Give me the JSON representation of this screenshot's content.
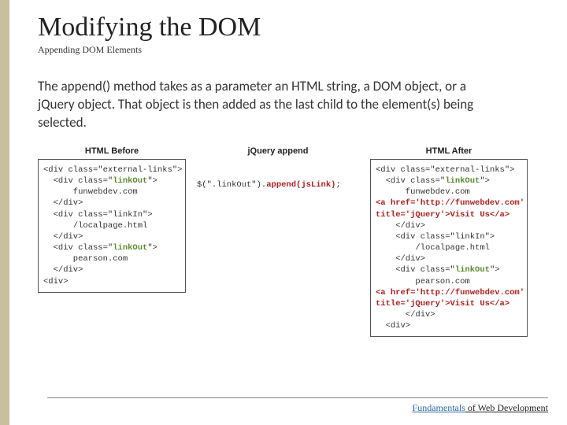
{
  "title": "Modifying the DOM",
  "subtitle": "Appending DOM Elements",
  "body": "The append() method takes as a parameter an HTML string, a DOM object, or a jQuery object. That object is then added as the last child to the element(s) being selected.",
  "panels": {
    "before": {
      "title": "HTML Before",
      "lines": [
        {
          "t": "<div class=\"external-links\">"
        },
        {
          "t": "  <div class=\"",
          "hl": "linkOut",
          "hlClass": "hl-green",
          "tail": "\">"
        },
        {
          "t": "      funwebdev.com"
        },
        {
          "t": "  </div>"
        },
        {
          "t": "  <div class=\"linkIn\">"
        },
        {
          "t": "      /localpage.html"
        },
        {
          "t": "  </div>"
        },
        {
          "t": "  <div class=\"",
          "hl": "linkOut",
          "hlClass": "hl-green",
          "tail": "\">"
        },
        {
          "t": "      pearson.com"
        },
        {
          "t": "  </div>"
        },
        {
          "t": "<div>"
        }
      ]
    },
    "append": {
      "title": "jQuery append",
      "line_pre": "$(\".linkOut\").",
      "line_hl": "append(jsLink)",
      "line_post": ";",
      "hlClass": "hl-red"
    },
    "after": {
      "title": "HTML After",
      "lines": [
        {
          "t": "<div class=\"external-links\">"
        },
        {
          "t": "  <div class=\"",
          "hl": "linkOut",
          "hlClass": "hl-green",
          "tail": "\">"
        },
        {
          "t": "      funwebdev.com"
        },
        {
          "fullhl": "<a href='http://funwebdev.com'",
          "hlClass": "hl-red"
        },
        {
          "fullhl": "title='jQuery'>Visit Us</a>",
          "hlClass": "hl-red"
        },
        {
          "t": "    </div>"
        },
        {
          "t": "    <div class=\"linkIn\">"
        },
        {
          "t": "        /localpage.html"
        },
        {
          "t": "    </div>"
        },
        {
          "t": "    <div class=\"",
          "hl": "linkOut",
          "hlClass": "hl-green",
          "tail": "\">"
        },
        {
          "t": "        pearson.com"
        },
        {
          "fullhl": "<a href='http://funwebdev.com'",
          "hlClass": "hl-red"
        },
        {
          "fullhl": "title='jQuery'>Visit Us</a>",
          "hlClass": "hl-red"
        },
        {
          "t": "      </div>"
        },
        {
          "t": "  <div>"
        }
      ]
    }
  },
  "footer": {
    "accent": "Fundamentals",
    "rest": " of Web Development"
  },
  "colors": {
    "sidebar": "#c9bfa0",
    "hl_green": "#5b8a2e",
    "hl_red": "#b02020",
    "footer_accent": "#2a6aa6"
  }
}
